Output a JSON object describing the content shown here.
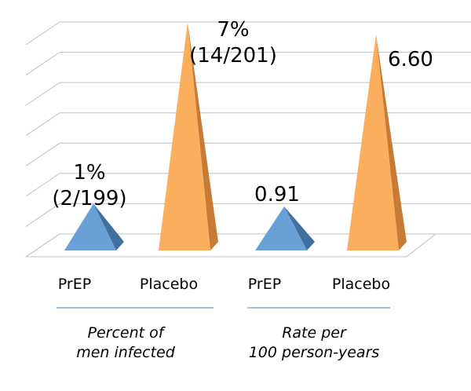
{
  "chart_data": {
    "type": "bar",
    "style": "3d-pyramid",
    "categories": [
      "PrEP",
      "Placebo",
      "PrEP",
      "Placebo"
    ],
    "groups": [
      {
        "label_lines": [
          "Percent of",
          "men infected"
        ],
        "categories": [
          0,
          1
        ]
      },
      {
        "label_lines": [
          "Rate per",
          "100 person-years"
        ],
        "categories": [
          2,
          3
        ]
      }
    ],
    "series": [
      {
        "values": [
          1,
          7,
          0.91,
          6.6
        ]
      }
    ],
    "data_labels": [
      [
        "1%",
        "(2/199)"
      ],
      [
        "7%",
        "(14/201)"
      ],
      [
        "0.91"
      ],
      [
        "6.60"
      ]
    ],
    "ylim": [
      0,
      7
    ],
    "grid": true,
    "legend": "none",
    "colors": {
      "prep_front": "#6a9fd8",
      "prep_side": "#41709f",
      "placebo_front": "#fbae5c",
      "placebo_side": "#c87b34",
      "grid": "#c0c0c0",
      "group_rule": "#7fa8d6"
    }
  }
}
